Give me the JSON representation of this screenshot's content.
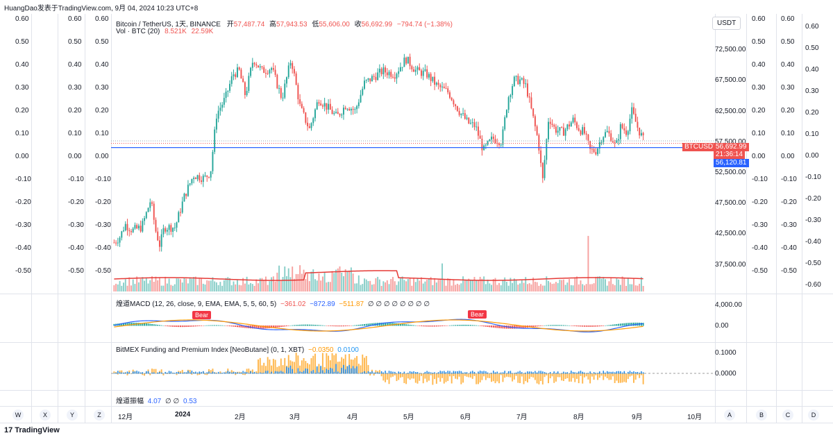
{
  "topbar": {
    "caption": "HuangDao发表于TradingView.com,  9月 04, 2024 10:23 UTC+8"
  },
  "legend": {
    "symbol": "Bitcoin / TetherUS, 1天, BINANCE",
    "open_label": "开",
    "open": "57,487.74",
    "high_label": "高",
    "high": "57,943.53",
    "low_label": "低",
    "low": "55,606.00",
    "close_label": "收",
    "close": "56,692.99",
    "change": "−794.74 (−1.38%)",
    "vol_label": "Vol · BTC (20)",
    "vol_a": "8.521K",
    "vol_b": "22.59K"
  },
  "left_axis_a": [
    "0.60",
    "0.50",
    "0.40",
    "0.30",
    "0.20",
    "0.10",
    "0.00",
    "-0.10",
    "-0.20",
    "-0.30",
    "-0.40",
    "-0.50"
  ],
  "left_axis_b": [
    "0.60",
    "0.50",
    "0.40",
    "0.30",
    "0.20",
    "0.10",
    "0.00",
    "-0.10",
    "-0.20",
    "-0.30",
    "-0.40",
    "-0.50"
  ],
  "left_axis_c": [
    "0.60",
    "0.50",
    "0.40",
    "0.30",
    "0.20",
    "0.10",
    "0.00",
    "-0.10",
    "-0.20",
    "-0.30",
    "-0.40",
    "-0.50"
  ],
  "right_axis_a": [
    "0.60",
    "0.50",
    "0.40",
    "0.30",
    "0.20",
    "0.10",
    "0.00",
    "-0.10",
    "-0.20",
    "-0.30",
    "-0.40",
    "-0.50"
  ],
  "right_axis_b": [
    "0.60",
    "0.50",
    "0.40",
    "0.30",
    "0.20",
    "0.10",
    "0.00",
    "-0.10",
    "-0.20",
    "-0.30",
    "-0.40",
    "-0.50"
  ],
  "right_axis_c": [
    "0.60",
    "0.50",
    "0.40",
    "0.30",
    "0.20",
    "0.10",
    "0.00",
    "-0.10",
    "-0.20",
    "-0.30",
    "-0.40",
    "-0.50",
    "-0.60"
  ],
  "price_axis": [
    "72,500.00",
    "67,500.00",
    "62,500.00",
    "57,500.00",
    "52,500.00",
    "47,500.00",
    "42,500.00",
    "37,500.00"
  ],
  "price_unit": "USDT",
  "last_price": {
    "symbol": "BTCUSDT",
    "value": "56,692.99",
    "countdown": "21:36:14"
  },
  "level_line": {
    "value": "56,120.81"
  },
  "macd": {
    "title": "煌道MACD (12, 26, close, 9, EMA, EMA, 5, 5, 60, 5)",
    "v1": "−361.02",
    "v2": "−872.89",
    "v3": "−511.87",
    "zeros": "∅ ∅ ∅ ∅ ∅ ∅ ∅ ∅",
    "axis": [
      "4,000.00",
      "0.00"
    ],
    "bear_label": "Bear"
  },
  "bitmex": {
    "title": "BitMEX Funding and Premium Index [NeoButane] (0, 1, XBT)",
    "v1": "−0.0350",
    "v2": "0.0100",
    "axis": [
      "0.1000",
      "0.0000"
    ]
  },
  "amp": {
    "title": "煌道振幅",
    "v1": "4.07",
    "v2": "∅ ∅",
    "v3": "0.53"
  },
  "time_axis": [
    "12月",
    "2024",
    "2月",
    "3月",
    "4月",
    "5月",
    "6月",
    "7月",
    "8月",
    "9月",
    "10月"
  ],
  "bottom_left_btns": [
    "W",
    "X",
    "Y",
    "Z"
  ],
  "bottom_right_btns": [
    "A",
    "B",
    "C",
    "D"
  ],
  "footer": {
    "brand": "TradingView"
  },
  "colors": {
    "up": "#26a69a",
    "down": "#ef5350",
    "blue": "#2962ff",
    "orange": "#ff9800",
    "ma": "#e53935"
  }
}
